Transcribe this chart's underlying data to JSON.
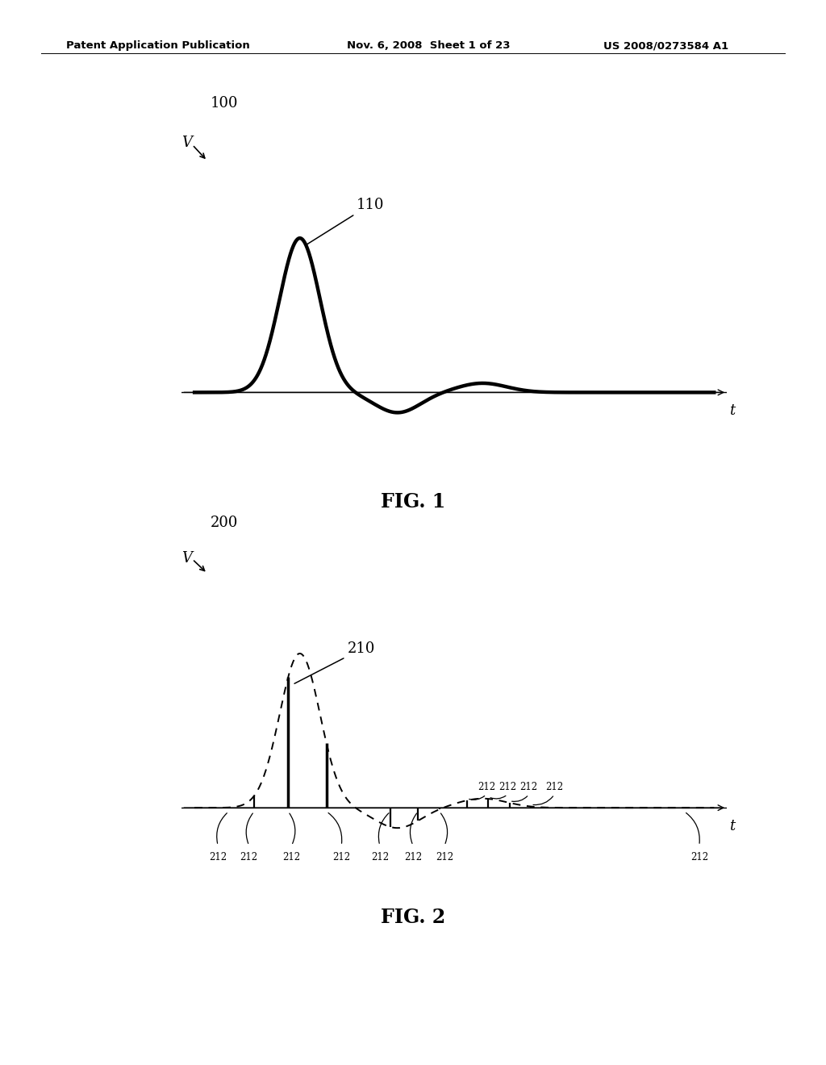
{
  "fig_width": 10.24,
  "fig_height": 13.2,
  "bg_color": "#ffffff",
  "header_left": "Patent Application Publication",
  "header_mid": "Nov. 6, 2008  Sheet 1 of 23",
  "header_right": "US 2008/0273584 A1",
  "fig1_number": "100",
  "fig1_caption": "FIG. 1",
  "fig1_peak_label": "110",
  "fig2_number": "200",
  "fig2_caption": "FIG. 2",
  "fig2_peak_label": "210",
  "fig2_pulse_label": "212",
  "pulse_times": [
    0.8,
    1.4,
    2.2,
    3.1,
    4.6,
    5.25,
    5.75,
    6.4,
    6.9,
    7.4,
    7.9,
    11.5
  ],
  "xlim": [
    -0.3,
    12.5
  ],
  "ylim": [
    -0.75,
    2.8
  ]
}
